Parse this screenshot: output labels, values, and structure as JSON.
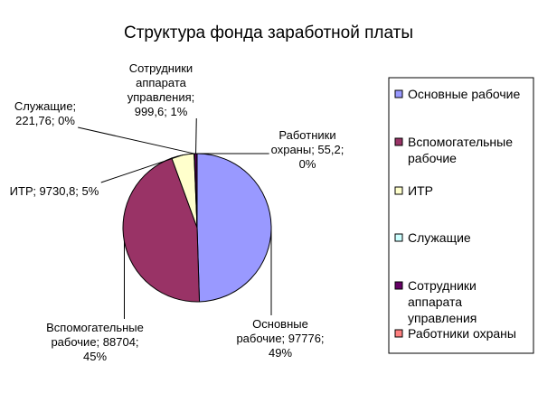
{
  "chart_data": {
    "type": "pie",
    "title": "Структура фонда заработной платы",
    "categories": [
      "Основные рабочие",
      "Вспомогательные рабочие",
      "ИТР",
      "Служащие",
      "Сотрудники аппарата управления",
      "Работники охраны"
    ],
    "values": [
      97776,
      88704,
      9730.8,
      221.76,
      999.6,
      55.2
    ],
    "value_labels": [
      "Основные рабочие; 97776; 49%",
      "Вспомогательные рабочие; 88704; 45%",
      "ИТР; 9730,8; 5%",
      "Служащие; 221,76; 0%",
      "Сотрудники аппарата управления; 999,6; 1%",
      "Работники охраны; 55,2; 0%"
    ],
    "colors": [
      "#9999ff",
      "#993366",
      "#ffffcc",
      "#ccffff",
      "#660066",
      "#ff8080"
    ],
    "legend": "right"
  }
}
